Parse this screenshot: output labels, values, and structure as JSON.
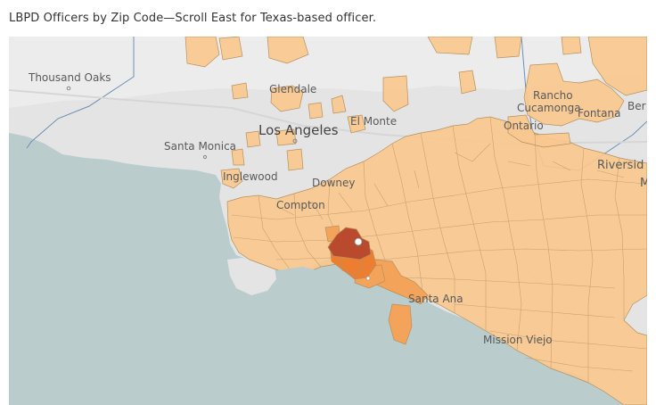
{
  "title": "LBPD Officers by Zip Code—Scroll East for Texas-based officer.",
  "map": {
    "colors": {
      "ocean": "#bacccc",
      "land": "#e4e4e4",
      "zip_low": "#f9c88f",
      "zip_medium": "#f4a35a",
      "zip_high": "#ed7d31",
      "zip_highest": "#b94a2d",
      "zip_border": "#b5915c"
    },
    "labels": {
      "thousand_oaks": "Thousand Oaks",
      "glendale": "Glendale",
      "rancho_cucamonga_1": "Rancho",
      "rancho_cucamonga_2": "Cucamonga",
      "fontana": "Fontana",
      "ber": "Ber",
      "el_monte": "El Monte",
      "los_angeles": "Los Angeles",
      "ontario": "Ontario",
      "santa_monica": "Santa Monica",
      "inglewood": "Inglewood",
      "riverside": "Riversid",
      "m": "M",
      "compton": "Compton",
      "santa_ana": "Santa Ana",
      "mission_viejo": "Mission Viejo",
      "downey": "Downey"
    }
  }
}
